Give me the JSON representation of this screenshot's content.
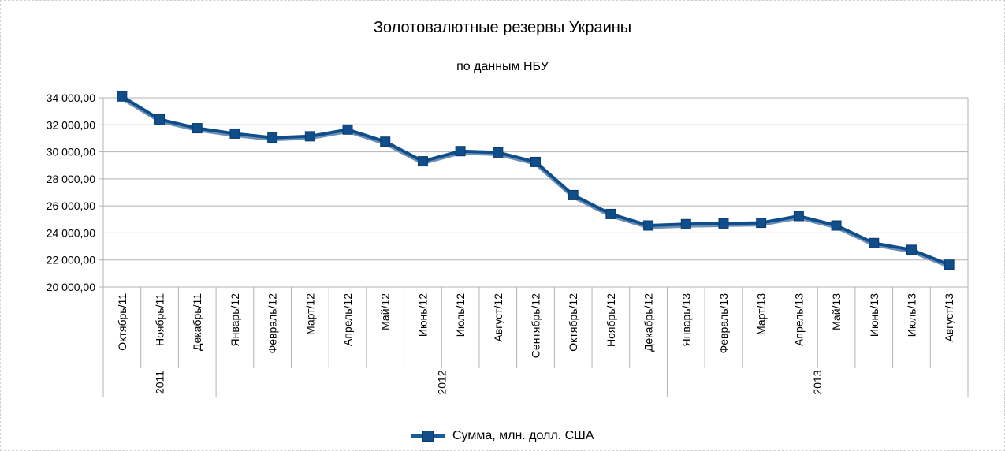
{
  "chart_data": {
    "type": "line",
    "title": "Золотовалютные резервы Украины",
    "subtitle": "по данным НБУ",
    "categories": [
      "Октябрь/11",
      "Ноябрь/11",
      "Декабрь/11",
      "Январь/12",
      "Февраль/12",
      "Март/12",
      "Апрель/12",
      "Май/12",
      "Июнь/12",
      "Июль/12",
      "Август/12",
      "Сентябрь/12",
      "Октябрь/12",
      "Ноябрь/12",
      "Декабрь/12",
      "Январь/13",
      "Февраль/13",
      "Март/13",
      "Апрель/13",
      "Май/13",
      "Июнь/13",
      "Июль/13",
      "Август/13"
    ],
    "year_groups": [
      {
        "label": "2011",
        "start": 0,
        "end": 2
      },
      {
        "label": "2012",
        "start": 3,
        "end": 14
      },
      {
        "label": "2013",
        "start": 15,
        "end": 22
      }
    ],
    "series": [
      {
        "name": "Сумма, млн. долл. США",
        "color": "#104e8b",
        "values": [
          34100,
          32400,
          31750,
          31350,
          31050,
          31150,
          31650,
          30750,
          29300,
          30050,
          29950,
          29250,
          26800,
          25400,
          24550,
          24650,
          24700,
          24750,
          25250,
          24550,
          23250,
          22750,
          21650
        ]
      }
    ],
    "yticks": [
      "34 000,00",
      "32 000,00",
      "30 000,00",
      "28 000,00",
      "26 000,00",
      "24 000,00",
      "22 000,00",
      "20 000,00"
    ],
    "ylim": [
      20000,
      34000
    ],
    "grid": true,
    "legend_position": "bottom"
  }
}
